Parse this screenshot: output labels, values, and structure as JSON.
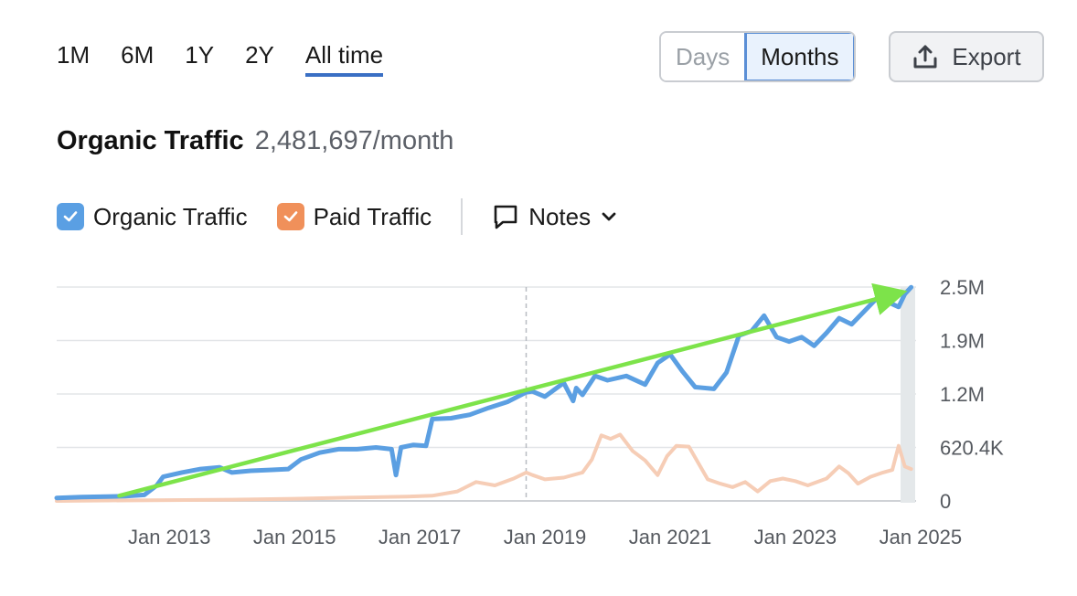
{
  "range_tabs": [
    {
      "label": "1M"
    },
    {
      "label": "6M"
    },
    {
      "label": "1Y"
    },
    {
      "label": "2Y"
    },
    {
      "label": "All time",
      "active": true
    }
  ],
  "granularity": {
    "days_label": "Days",
    "months_label": "Months",
    "selected": "Months"
  },
  "export": {
    "label": "Export",
    "icon": "upload-icon"
  },
  "header": {
    "title": "Organic Traffic",
    "value": "2,481,697/month"
  },
  "legend": {
    "organic": {
      "label": "Organic Traffic",
      "color": "#5a9fe3",
      "checked": true
    },
    "paid": {
      "label": "Paid Traffic",
      "color": "#f0905a",
      "checked": true
    },
    "notes": {
      "label": "Notes",
      "icon": "comment-icon"
    }
  },
  "colors": {
    "organic_line": "#5b9fe2",
    "paid_line": "#f6cdb6",
    "trend_arrow": "#7de34a",
    "grid": "#e3e5e8"
  },
  "chart_data": {
    "type": "line",
    "y_ticks": [
      "0",
      "620.4K",
      "1.2M",
      "1.9M",
      "2.5M"
    ],
    "y_tick_values": [
      0,
      620400,
      1240800,
      1861200,
      2481600
    ],
    "ylim": [
      0,
      2481600
    ],
    "x_tick_labels": [
      "Jan 2013",
      "Jan 2015",
      "Jan 2017",
      "Jan 2019",
      "Jan 2021",
      "Jan 2023",
      "Jan 2025"
    ],
    "x_tick_years": [
      2013,
      2015,
      2017,
      2019,
      2021,
      2023,
      2025
    ],
    "xlim": [
      2011.2,
      2024.9
    ],
    "cursor_x": 2018.7,
    "series": [
      {
        "name": "Organic Traffic",
        "x": [
          2011.2,
          2011.6,
          2012.0,
          2012.3,
          2012.6,
          2012.8,
          2012.9,
          2013.2,
          2013.5,
          2013.8,
          2014.0,
          2014.3,
          2014.6,
          2014.9,
          2015.1,
          2015.4,
          2015.7,
          2016.0,
          2016.3,
          2016.55,
          2016.62,
          2016.7,
          2016.9,
          2017.1,
          2017.2,
          2017.5,
          2017.8,
          2018.1,
          2018.4,
          2018.7,
          2018.8,
          2019.0,
          2019.3,
          2019.45,
          2019.5,
          2019.6,
          2019.8,
          2020.0,
          2020.3,
          2020.6,
          2020.8,
          2021.0,
          2021.2,
          2021.4,
          2021.7,
          2021.9,
          2022.1,
          2022.3,
          2022.5,
          2022.7,
          2022.9,
          2023.1,
          2023.3,
          2023.5,
          2023.7,
          2023.9,
          2024.1,
          2024.3,
          2024.5,
          2024.65,
          2024.75,
          2024.85
        ],
        "values": [
          35000,
          45000,
          50000,
          55000,
          70000,
          180000,
          280000,
          330000,
          370000,
          390000,
          330000,
          350000,
          360000,
          370000,
          480000,
          560000,
          600000,
          600000,
          620000,
          600000,
          300000,
          620000,
          650000,
          640000,
          950000,
          960000,
          1000000,
          1080000,
          1150000,
          1260000,
          1270000,
          1210000,
          1370000,
          1160000,
          1310000,
          1230000,
          1450000,
          1400000,
          1450000,
          1350000,
          1600000,
          1700000,
          1500000,
          1320000,
          1300000,
          1490000,
          1920000,
          1970000,
          2150000,
          1900000,
          1850000,
          1900000,
          1800000,
          1950000,
          2120000,
          2050000,
          2200000,
          2350000,
          2300000,
          2250000,
          2400000,
          2480000
        ]
      },
      {
        "name": "Paid Traffic",
        "x": [
          2011.2,
          2012.0,
          2013.0,
          2014.0,
          2015.0,
          2016.0,
          2016.8,
          2017.2,
          2017.6,
          2017.9,
          2018.2,
          2018.5,
          2018.7,
          2018.8,
          2019.0,
          2019.3,
          2019.6,
          2019.75,
          2019.9,
          2020.05,
          2020.2,
          2020.4,
          2020.6,
          2020.8,
          2020.95,
          2021.1,
          2021.3,
          2021.6,
          2021.8,
          2022.0,
          2022.2,
          2022.4,
          2022.6,
          2022.8,
          2023.0,
          2023.2,
          2023.5,
          2023.7,
          2023.85,
          2024.0,
          2024.2,
          2024.4,
          2024.55,
          2024.65,
          2024.75,
          2024.85
        ],
        "values": [
          0,
          5000,
          10000,
          15000,
          25000,
          40000,
          50000,
          60000,
          110000,
          220000,
          180000,
          260000,
          330000,
          300000,
          250000,
          270000,
          330000,
          480000,
          760000,
          720000,
          770000,
          580000,
          470000,
          300000,
          520000,
          640000,
          630000,
          250000,
          200000,
          160000,
          220000,
          110000,
          230000,
          260000,
          230000,
          180000,
          260000,
          400000,
          320000,
          200000,
          280000,
          330000,
          360000,
          640000,
          400000,
          370000
        ]
      }
    ],
    "trend_arrow": {
      "from": {
        "x": 2012.2,
        "y": 60000
      },
      "to": {
        "x": 2024.6,
        "y": 2400000
      }
    }
  }
}
